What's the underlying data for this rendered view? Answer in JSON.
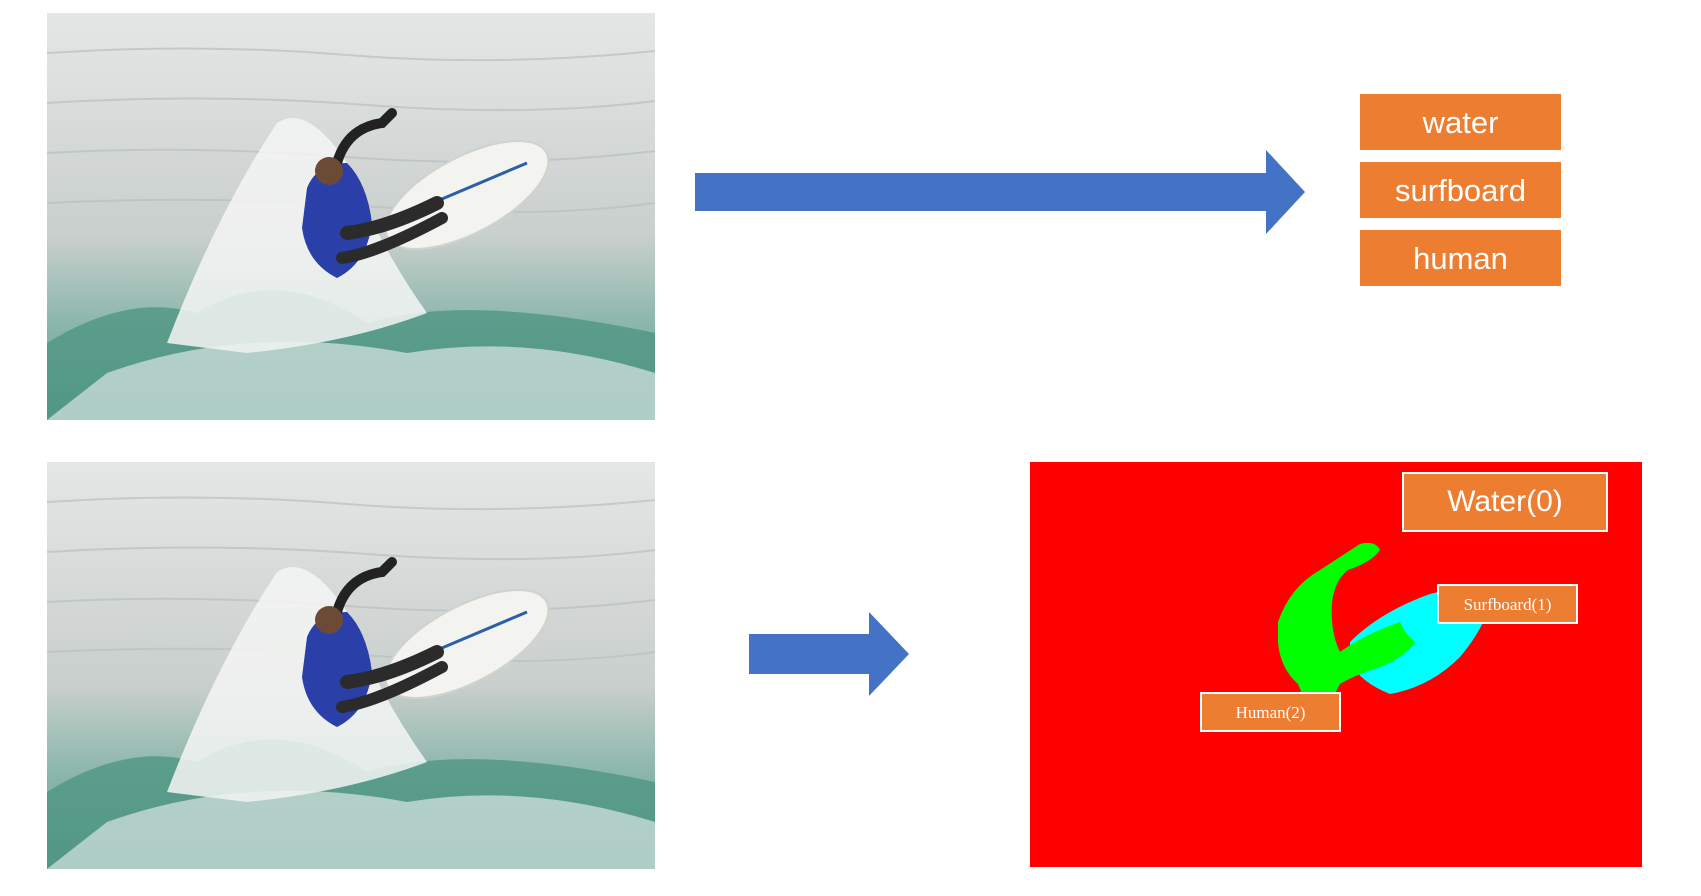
{
  "colors": {
    "arrow": "#4472C4",
    "label_fill": "#ED7D31",
    "label_text": "#FFFFFF",
    "water_class": "#FF0000",
    "surfboard_class": "#00FFFF",
    "human_class": "#00FF00"
  },
  "classification": {
    "labels": [
      "water",
      "surfboard",
      "human"
    ]
  },
  "segmentation": {
    "tags": {
      "water": "Water(0)",
      "surfboard": "Surfboard(1)",
      "human": "Human(2)"
    }
  }
}
